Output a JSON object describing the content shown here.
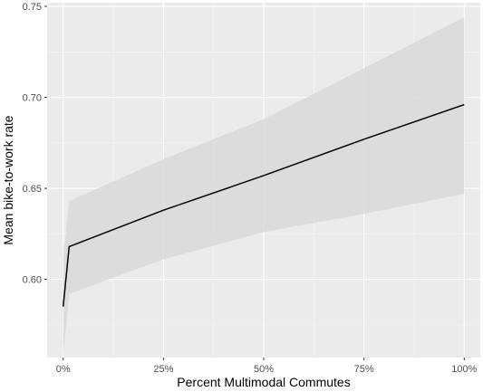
{
  "chart_data": {
    "type": "line",
    "title": "",
    "xlabel": "Percent Multimodal Commutes",
    "ylabel": "Mean bike-to-work rate",
    "xlim": [
      -0.04,
      1.04
    ],
    "ylim": [
      0.557,
      0.752
    ],
    "x_ticks": [
      0,
      0.25,
      0.5,
      0.75,
      1.0
    ],
    "x_tick_labels": [
      "0%",
      "25%",
      "50%",
      "75%",
      "100%"
    ],
    "y_ticks": [
      0.6,
      0.65,
      0.7,
      0.75
    ],
    "y_tick_labels": [
      "0.60",
      "0.65",
      "0.70",
      "0.75"
    ],
    "grid": true,
    "series": [
      {
        "x": [
          0.0,
          0.015,
          0.25,
          0.5,
          0.75,
          1.0
        ],
        "y": [
          0.585,
          0.618,
          0.638,
          0.657,
          0.677,
          0.696
        ],
        "lower": [
          0.557,
          0.592,
          0.611,
          0.626,
          0.636,
          0.647
        ],
        "upper": [
          0.612,
          0.643,
          0.666,
          0.688,
          0.716,
          0.744
        ]
      }
    ],
    "colors": {
      "panel": "#ebebeb",
      "grid_major": "#ffffff",
      "grid_minor": "#f5f5f5",
      "ribbon": "#d9d9d9",
      "line": "#000000",
      "tick": "#333333"
    }
  }
}
